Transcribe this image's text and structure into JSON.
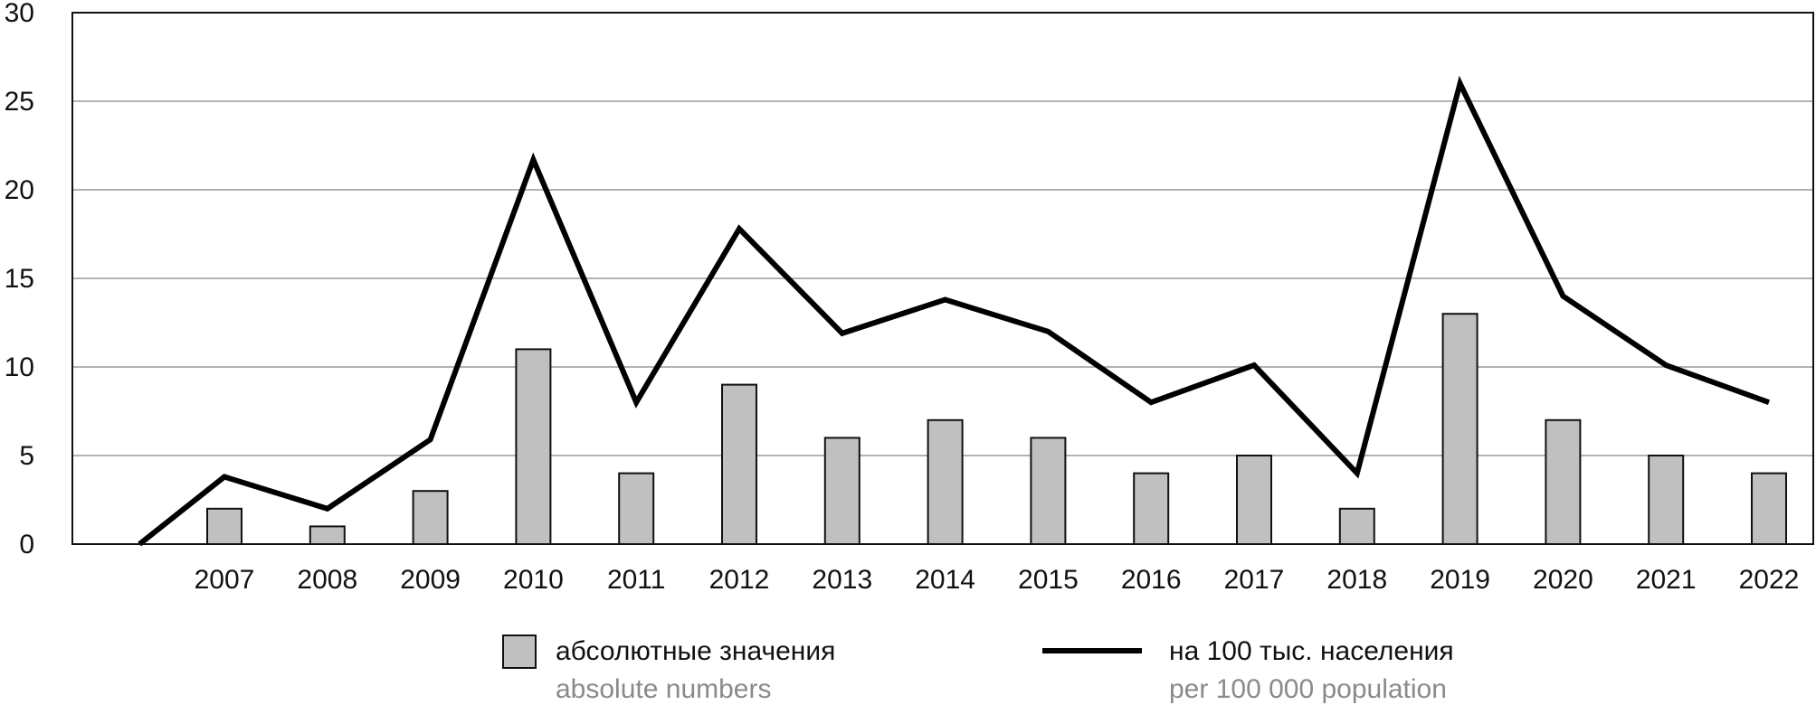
{
  "chart_data": {
    "type": "bar",
    "categories": [
      "2007",
      "2008",
      "2009",
      "2010",
      "2011",
      "2012",
      "2013",
      "2014",
      "2015",
      "2016",
      "2017",
      "2018",
      "2019",
      "2020",
      "2021",
      "2022"
    ],
    "ylim": [
      0,
      30
    ],
    "y_ticks": [
      "0",
      "5",
      "10",
      "15",
      "20",
      "25",
      "30"
    ],
    "grid": true,
    "series": [
      {
        "name": "абсолютные значения",
        "type": "bar",
        "color": "#c0c0c0",
        "values": [
          2,
          1,
          3,
          11,
          4,
          9,
          6,
          7,
          6,
          4,
          5,
          2,
          13,
          7,
          5,
          4
        ]
      },
      {
        "name": "на 100 тыс. населения",
        "type": "line",
        "color": "#000000",
        "start_value": 0,
        "values": [
          3.8,
          2,
          5.9,
          21.7,
          8,
          17.8,
          11.9,
          13.8,
          12,
          8,
          10.1,
          4,
          26,
          14,
          10.1,
          8
        ]
      }
    ],
    "legend_position": "bottom"
  },
  "legend": {
    "bars_label": "абсолютные значения",
    "bars_sublabel": "absolute numbers",
    "line_label": "на 100 тыс. населения",
    "line_sublabel": "per 100 000 population"
  },
  "colors": {
    "bar_fill": "#c0c0c0",
    "line": "#000000",
    "grid": "#9a9a9a",
    "subtext": "#8a8a8a"
  }
}
